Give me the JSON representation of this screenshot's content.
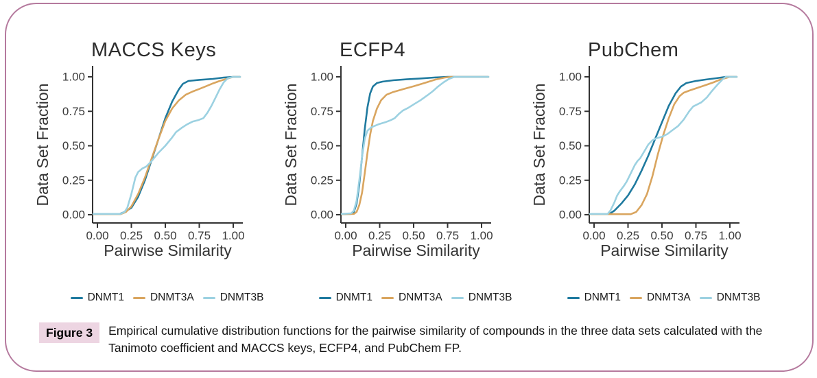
{
  "figure": {
    "caption_badge": "Figure 3",
    "caption_text": "Empirical cumulative distribution functions for the pairwise similarity of compounds in the three data sets calculated with the Tanimoto coefficient and MACCS keys, ECFP4, and PubChem FP."
  },
  "style": {
    "background": "#ffffff",
    "border_color": "#b57a9e",
    "badge_bg": "#edd5e2",
    "axis_color": "#333333",
    "series_colors": {
      "DNMT1": "#1f7a9f",
      "DNMT3A": "#d9a55f",
      "DNMT3B": "#9cd1e1"
    }
  },
  "chart_data": [
    {
      "type": "line",
      "subtype": "ecdf",
      "title": "MACCS Keys",
      "xlabel": "Pairwise Similarity",
      "ylabel": "Data Set Fraction",
      "xlim": [
        0,
        1.05
      ],
      "ylim": [
        0,
        1
      ],
      "xticks": [
        0,
        0.25,
        0.5,
        0.75,
        1
      ],
      "yticks": [
        0,
        0.25,
        0.5,
        0.75,
        1
      ],
      "grid": false,
      "legend_position": "bottom",
      "series": [
        {
          "name": "DNMT1",
          "color": "#1f7a9f",
          "points": [
            [
              -0.03,
              0.004
            ],
            [
              0.16,
              0.004
            ],
            [
              0.2,
              0.02
            ],
            [
              0.25,
              0.05
            ],
            [
              0.3,
              0.13
            ],
            [
              0.35,
              0.25
            ],
            [
              0.4,
              0.4
            ],
            [
              0.45,
              0.55
            ],
            [
              0.5,
              0.7
            ],
            [
              0.55,
              0.82
            ],
            [
              0.6,
              0.91
            ],
            [
              0.63,
              0.95
            ],
            [
              0.67,
              0.97
            ],
            [
              0.75,
              0.978
            ],
            [
              0.85,
              0.985
            ],
            [
              0.93,
              0.995
            ],
            [
              1.0,
              1.0
            ],
            [
              1.05,
              1.0
            ]
          ]
        },
        {
          "name": "DNMT3A",
          "color": "#d9a55f",
          "points": [
            [
              -0.03,
              0.004
            ],
            [
              0.17,
              0.004
            ],
            [
              0.21,
              0.02
            ],
            [
              0.25,
              0.06
            ],
            [
              0.3,
              0.15
            ],
            [
              0.35,
              0.27
            ],
            [
              0.4,
              0.41
            ],
            [
              0.45,
              0.55
            ],
            [
              0.5,
              0.68
            ],
            [
              0.55,
              0.77
            ],
            [
              0.6,
              0.83
            ],
            [
              0.65,
              0.87
            ],
            [
              0.7,
              0.893
            ],
            [
              0.75,
              0.912
            ],
            [
              0.8,
              0.932
            ],
            [
              0.85,
              0.952
            ],
            [
              0.9,
              0.97
            ],
            [
              0.95,
              0.985
            ],
            [
              1.0,
              1.0
            ],
            [
              1.05,
              1.0
            ]
          ]
        },
        {
          "name": "DNMT3B",
          "color": "#9cd1e1",
          "points": [
            [
              -0.03,
              0.006
            ],
            [
              0.17,
              0.006
            ],
            [
              0.2,
              0.02
            ],
            [
              0.22,
              0.05
            ],
            [
              0.25,
              0.15
            ],
            [
              0.28,
              0.27
            ],
            [
              0.3,
              0.31
            ],
            [
              0.33,
              0.335
            ],
            [
              0.36,
              0.35
            ],
            [
              0.4,
              0.39
            ],
            [
              0.45,
              0.45
            ],
            [
              0.5,
              0.5
            ],
            [
              0.55,
              0.56
            ],
            [
              0.58,
              0.6
            ],
            [
              0.62,
              0.63
            ],
            [
              0.66,
              0.655
            ],
            [
              0.7,
              0.675
            ],
            [
              0.74,
              0.685
            ],
            [
              0.78,
              0.7
            ],
            [
              0.81,
              0.74
            ],
            [
              0.84,
              0.79
            ],
            [
              0.87,
              0.85
            ],
            [
              0.9,
              0.91
            ],
            [
              0.93,
              0.96
            ],
            [
              0.96,
              0.99
            ],
            [
              1.0,
              1.0
            ],
            [
              1.05,
              1.0
            ]
          ]
        }
      ]
    },
    {
      "type": "line",
      "subtype": "ecdf",
      "title": "ECFP4",
      "xlabel": "Pairwise Similarity",
      "ylabel": "Data Set Fraction",
      "xlim": [
        0,
        1.05
      ],
      "ylim": [
        0,
        1
      ],
      "xticks": [
        0,
        0.25,
        0.5,
        0.75,
        1
      ],
      "yticks": [
        0,
        0.25,
        0.5,
        0.75,
        1
      ],
      "grid": false,
      "legend_position": "bottom",
      "series": [
        {
          "name": "DNMT1",
          "color": "#1f7a9f",
          "points": [
            [
              -0.03,
              0.004
            ],
            [
              0.04,
              0.006
            ],
            [
              0.06,
              0.02
            ],
            [
              0.08,
              0.08
            ],
            [
              0.1,
              0.22
            ],
            [
              0.12,
              0.42
            ],
            [
              0.14,
              0.62
            ],
            [
              0.16,
              0.78
            ],
            [
              0.18,
              0.88
            ],
            [
              0.2,
              0.93
            ],
            [
              0.23,
              0.955
            ],
            [
              0.27,
              0.965
            ],
            [
              0.35,
              0.975
            ],
            [
              0.45,
              0.982
            ],
            [
              0.55,
              0.988
            ],
            [
              0.65,
              0.995
            ],
            [
              0.75,
              1.0
            ],
            [
              1.05,
              1.0
            ]
          ]
        },
        {
          "name": "DNMT3A",
          "color": "#d9a55f",
          "points": [
            [
              -0.03,
              0.004
            ],
            [
              0.06,
              0.006
            ],
            [
              0.08,
              0.02
            ],
            [
              0.1,
              0.07
            ],
            [
              0.12,
              0.16
            ],
            [
              0.14,
              0.3
            ],
            [
              0.16,
              0.45
            ],
            [
              0.18,
              0.58
            ],
            [
              0.2,
              0.68
            ],
            [
              0.23,
              0.77
            ],
            [
              0.26,
              0.83
            ],
            [
              0.3,
              0.87
            ],
            [
              0.35,
              0.89
            ],
            [
              0.42,
              0.91
            ],
            [
              0.5,
              0.932
            ],
            [
              0.58,
              0.955
            ],
            [
              0.66,
              0.98
            ],
            [
              0.73,
              0.995
            ],
            [
              0.78,
              1.0
            ],
            [
              1.05,
              1.0
            ]
          ]
        },
        {
          "name": "DNMT3B",
          "color": "#9cd1e1",
          "points": [
            [
              -0.03,
              0.006
            ],
            [
              0.04,
              0.01
            ],
            [
              0.06,
              0.03
            ],
            [
              0.08,
              0.1
            ],
            [
              0.1,
              0.25
            ],
            [
              0.12,
              0.42
            ],
            [
              0.14,
              0.55
            ],
            [
              0.16,
              0.61
            ],
            [
              0.19,
              0.635
            ],
            [
              0.24,
              0.655
            ],
            [
              0.29,
              0.67
            ],
            [
              0.33,
              0.685
            ],
            [
              0.36,
              0.7
            ],
            [
              0.39,
              0.73
            ],
            [
              0.42,
              0.755
            ],
            [
              0.46,
              0.775
            ],
            [
              0.5,
              0.8
            ],
            [
              0.55,
              0.83
            ],
            [
              0.6,
              0.865
            ],
            [
              0.64,
              0.895
            ],
            [
              0.68,
              0.93
            ],
            [
              0.72,
              0.96
            ],
            [
              0.76,
              0.985
            ],
            [
              0.8,
              1.0
            ],
            [
              1.05,
              1.0
            ]
          ]
        }
      ]
    },
    {
      "type": "line",
      "subtype": "ecdf",
      "title": "PubChem",
      "xlabel": "Pairwise Similarity",
      "ylabel": "Data Set Fraction",
      "xlim": [
        0,
        1.05
      ],
      "ylim": [
        0,
        1
      ],
      "xticks": [
        0,
        0.25,
        0.5,
        0.75,
        1
      ],
      "yticks": [
        0,
        0.25,
        0.5,
        0.75,
        1
      ],
      "grid": false,
      "legend_position": "bottom",
      "series": [
        {
          "name": "DNMT1",
          "color": "#1f7a9f",
          "points": [
            [
              -0.03,
              0.004
            ],
            [
              0.11,
              0.004
            ],
            [
              0.15,
              0.03
            ],
            [
              0.2,
              0.08
            ],
            [
              0.25,
              0.14
            ],
            [
              0.3,
              0.22
            ],
            [
              0.35,
              0.32
            ],
            [
              0.4,
              0.43
            ],
            [
              0.45,
              0.55
            ],
            [
              0.5,
              0.67
            ],
            [
              0.55,
              0.79
            ],
            [
              0.6,
              0.88
            ],
            [
              0.64,
              0.93
            ],
            [
              0.68,
              0.955
            ],
            [
              0.75,
              0.97
            ],
            [
              0.82,
              0.98
            ],
            [
              0.9,
              0.99
            ],
            [
              0.97,
              1.0
            ],
            [
              1.05,
              1.0
            ]
          ]
        },
        {
          "name": "DNMT3A",
          "color": "#d9a55f",
          "points": [
            [
              -0.03,
              0.004
            ],
            [
              0.27,
              0.004
            ],
            [
              0.31,
              0.02
            ],
            [
              0.35,
              0.07
            ],
            [
              0.39,
              0.15
            ],
            [
              0.43,
              0.28
            ],
            [
              0.47,
              0.44
            ],
            [
              0.51,
              0.58
            ],
            [
              0.55,
              0.7
            ],
            [
              0.59,
              0.8
            ],
            [
              0.63,
              0.86
            ],
            [
              0.66,
              0.885
            ],
            [
              0.7,
              0.9
            ],
            [
              0.76,
              0.92
            ],
            [
              0.82,
              0.94
            ],
            [
              0.88,
              0.96
            ],
            [
              0.93,
              0.98
            ],
            [
              1.0,
              1.0
            ],
            [
              1.05,
              1.0
            ]
          ]
        },
        {
          "name": "DNMT3B",
          "color": "#9cd1e1",
          "points": [
            [
              -0.03,
              0.006
            ],
            [
              0.1,
              0.006
            ],
            [
              0.12,
              0.03
            ],
            [
              0.15,
              0.09
            ],
            [
              0.17,
              0.14
            ],
            [
              0.19,
              0.17
            ],
            [
              0.22,
              0.21
            ],
            [
              0.24,
              0.24
            ],
            [
              0.27,
              0.3
            ],
            [
              0.3,
              0.36
            ],
            [
              0.32,
              0.39
            ],
            [
              0.34,
              0.41
            ],
            [
              0.37,
              0.46
            ],
            [
              0.4,
              0.51
            ],
            [
              0.43,
              0.54
            ],
            [
              0.46,
              0.555
            ],
            [
              0.5,
              0.565
            ],
            [
              0.54,
              0.585
            ],
            [
              0.58,
              0.615
            ],
            [
              0.62,
              0.645
            ],
            [
              0.66,
              0.69
            ],
            [
              0.7,
              0.75
            ],
            [
              0.73,
              0.785
            ],
            [
              0.76,
              0.8
            ],
            [
              0.79,
              0.815
            ],
            [
              0.83,
              0.85
            ],
            [
              0.87,
              0.9
            ],
            [
              0.91,
              0.945
            ],
            [
              0.95,
              0.985
            ],
            [
              0.97,
              1.0
            ],
            [
              1.05,
              1.0
            ]
          ]
        }
      ]
    }
  ]
}
